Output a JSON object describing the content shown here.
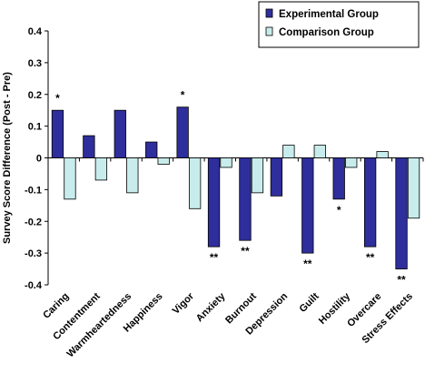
{
  "chart_data": {
    "type": "bar",
    "ylabel": "Survey Score Difference (Post - Pre)",
    "xlabel": "",
    "ylim": [
      -0.4,
      0.4
    ],
    "yticks": [
      "0.4",
      "0.3",
      "0.2",
      "0.1",
      "0",
      "-0.1",
      "-0.2",
      "-0.3",
      "-0.4"
    ],
    "yticks_values": [
      0.4,
      0.3,
      0.2,
      0.1,
      0,
      -0.1,
      -0.2,
      -0.3,
      -0.4
    ],
    "grid": false,
    "legend_position": "top-right",
    "categories": [
      "Caring",
      "Contentment",
      "Warmheartedness",
      "Happiness",
      "Vigor",
      "Anxiety",
      "Burnout",
      "Depression",
      "Guilt",
      "Hostility",
      "Overcare",
      "Stress Effects"
    ],
    "series": [
      {
        "name": "Experimental Group",
        "color": "#2e2e9c",
        "values": [
          0.15,
          0.07,
          0.15,
          0.05,
          0.16,
          -0.28,
          -0.26,
          -0.12,
          -0.3,
          -0.13,
          -0.28,
          -0.35
        ]
      },
      {
        "name": "Comparison Group",
        "color": "#c8ecec",
        "values": [
          -0.13,
          -0.07,
          -0.11,
          -0.02,
          -0.16,
          -0.03,
          -0.11,
          0.04,
          0.04,
          -0.03,
          0.02,
          -0.19
        ]
      }
    ],
    "significance": [
      "*",
      "",
      "",
      "",
      "*",
      "**",
      "**",
      "",
      "**",
      "*",
      "**",
      "**"
    ]
  }
}
